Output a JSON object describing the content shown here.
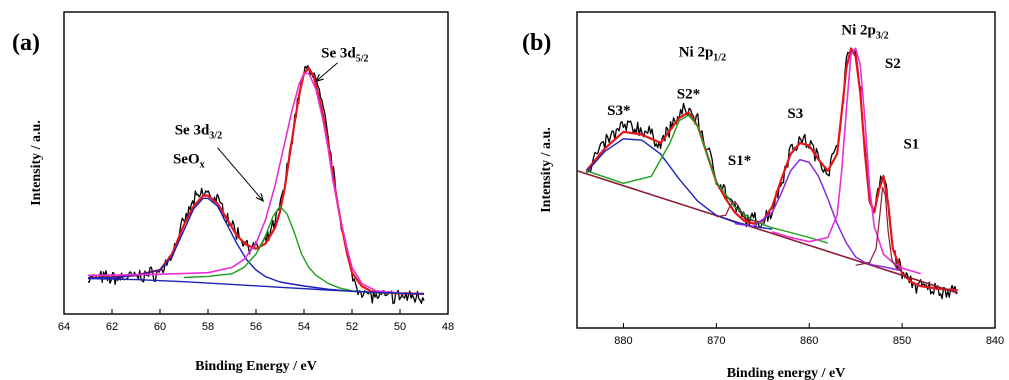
{
  "chart_data": [
    {
      "panel": "(a)",
      "type": "line",
      "xlabel": "Binding Energy / eV",
      "ylabel": "Intensity / a.u.",
      "xlim": [
        64,
        48
      ],
      "ylim": [
        0,
        100
      ],
      "x_reversed": true,
      "x_ticks": [
        64,
        62,
        60,
        58,
        56,
        54,
        52,
        50,
        48
      ],
      "grid": false,
      "annotations": [
        {
          "id": "seox",
          "text": "SeO",
          "sub": "x",
          "x": 58.8,
          "y": 52
        },
        {
          "id": "se3d32",
          "text": "Se 3d",
          "sub": "3/2",
          "x": 58.4,
          "y": 63
        },
        {
          "id": "se3d52",
          "text": "Se 3d",
          "sub": "5/2",
          "x": 52.3,
          "y": 92
        }
      ],
      "arrows": [
        {
          "id": "arrow-se3d32",
          "from": [
            57.6,
            58
          ],
          "to": [
            55.7,
            38
          ]
        },
        {
          "id": "arrow-se3d52",
          "from": [
            52.6,
            90
          ],
          "to": [
            53.5,
            83
          ]
        }
      ],
      "series": [
        {
          "id": "raw",
          "color": "#000000",
          "width": 1.3,
          "noise": 2.2,
          "x": [
            63,
            62,
            61,
            60,
            59.5,
            59,
            58.6,
            58.2,
            58,
            57.6,
            57.2,
            56.8,
            56.4,
            56,
            55.6,
            55.2,
            55,
            54.8,
            54.6,
            54.4,
            54.2,
            54,
            53.8,
            53.6,
            53.4,
            53.2,
            53,
            52.8,
            52.6,
            52.4,
            52.2,
            52,
            51.8,
            51.4,
            51,
            50,
            49
          ],
          "y": [
            9,
            9,
            9.5,
            11,
            18,
            30,
            38,
            41,
            41,
            38,
            32,
            26,
            22,
            20,
            22,
            30,
            36,
            44,
            56,
            68,
            78,
            86,
            88,
            86,
            80,
            72,
            62,
            50,
            38,
            28,
            18,
            10,
            6,
            3,
            2,
            2,
            2
          ]
        },
        {
          "id": "envelope",
          "color": "#e8141c",
          "width": 2.2,
          "noise": 0,
          "x": [
            63,
            62,
            61,
            60,
            59.5,
            59,
            58.6,
            58.2,
            58,
            57.6,
            57.2,
            56.8,
            56.4,
            56,
            55.6,
            55.2,
            55,
            54.8,
            54.6,
            54.4,
            54.2,
            54,
            53.8,
            53.6,
            53.4,
            53.2,
            53,
            52.8,
            52.6,
            52.4,
            52.2,
            52,
            51.6,
            51.2,
            50.6,
            50,
            49
          ],
          "y": [
            9,
            9.3,
            10,
            12,
            18,
            29,
            36,
            40,
            40,
            37,
            31,
            25,
            21.5,
            20,
            22,
            28,
            34,
            43,
            55,
            67,
            78,
            86,
            88,
            85,
            78,
            70,
            60,
            48,
            37,
            27,
            18,
            11,
            6,
            4,
            3.5,
            3.2,
            3
          ]
        },
        {
          "id": "component-seox",
          "color": "#1c22b8",
          "width": 1.4,
          "noise": 0,
          "x": [
            63,
            62,
            61,
            60,
            59.5,
            59,
            58.6,
            58.2,
            58,
            57.6,
            57.2,
            56.8,
            56.4,
            56,
            55.6,
            55,
            54,
            53,
            52,
            51,
            50,
            49
          ],
          "y": [
            9,
            9.2,
            10,
            12,
            17,
            27,
            35,
            39,
            39,
            36,
            29,
            22,
            16,
            12,
            9.5,
            7.5,
            6,
            4.8,
            4,
            3.5,
            3.2,
            3
          ]
        },
        {
          "id": "component-se3d32",
          "color": "#18a21c",
          "width": 1.4,
          "noise": 0,
          "x": [
            59,
            58,
            57,
            56.5,
            56,
            55.6,
            55.3,
            55,
            54.7,
            54.4,
            54.1,
            53.8,
            53.5,
            53,
            52.5,
            52,
            51,
            50
          ],
          "y": [
            9.2,
            9.6,
            10.6,
            13,
            18,
            25,
            32,
            36,
            33,
            26,
            18,
            13,
            10,
            7,
            5.2,
            4.2,
            3.5,
            3.2
          ]
        },
        {
          "id": "component-se3d52",
          "color": "#e82fd8",
          "width": 1.6,
          "noise": 0,
          "x": [
            63,
            62,
            60,
            58,
            57,
            56.5,
            56,
            55.6,
            55.2,
            54.8,
            54.5,
            54.2,
            54,
            53.8,
            53.5,
            53.2,
            53,
            52.8,
            52.5,
            52.2,
            52,
            51.6,
            51,
            50
          ],
          "y": [
            10,
            10.1,
            10.4,
            11,
            13,
            16,
            22,
            31,
            44,
            60,
            72,
            82,
            86,
            86,
            80,
            68,
            58,
            46,
            32,
            20,
            13,
            7,
            4.2,
            3.3
          ]
        },
        {
          "id": "background",
          "color": "#1c22b8",
          "width": 1.4,
          "noise": 0,
          "x": [
            63,
            61,
            59,
            57,
            55,
            53,
            51,
            49
          ],
          "y": [
            8.8,
            8.4,
            7.6,
            6.6,
            5.5,
            4.5,
            3.6,
            3
          ]
        }
      ]
    },
    {
      "panel": "(b)",
      "type": "line",
      "xlabel": "Binding energy / eV",
      "ylabel": "Intensity / a.u.",
      "xlim": [
        885,
        840
      ],
      "ylim": [
        0,
        100
      ],
      "x_reversed": true,
      "x_ticks": [
        880,
        870,
        860,
        850,
        840
      ],
      "grid": false,
      "annotations": [
        {
          "id": "s3star",
          "text": "S3*",
          "sub": "",
          "x": 880.5,
          "y": 72
        },
        {
          "id": "s2star",
          "text": "S2*",
          "sub": "",
          "x": 873.0,
          "y": 78
        },
        {
          "id": "ni2p12",
          "text": "Ni 2p",
          "sub": "1/2",
          "x": 871.5,
          "y": 93
        },
        {
          "id": "s1star",
          "text": "S1*",
          "sub": "",
          "x": 867.5,
          "y": 54
        },
        {
          "id": "s3",
          "text": "S3",
          "sub": "",
          "x": 861.5,
          "y": 71
        },
        {
          "id": "ni2p32",
          "text": "Ni 2p",
          "sub": "3/2",
          "x": 854.0,
          "y": 101
        },
        {
          "id": "s2",
          "text": "S2",
          "sub": "",
          "x": 851.0,
          "y": 89
        },
        {
          "id": "s1",
          "text": "S1",
          "sub": "",
          "x": 849.0,
          "y": 60
        }
      ],
      "arrows": [],
      "series": [
        {
          "id": "raw",
          "color": "#000000",
          "width": 1.3,
          "noise": 2.4,
          "x": [
            884,
            882,
            880,
            878,
            876,
            874,
            873,
            872,
            871,
            870,
            869,
            868,
            867,
            866,
            865,
            864,
            863,
            862,
            861,
            860,
            859,
            858,
            857,
            856.5,
            856,
            855.5,
            855,
            854.5,
            854,
            853.5,
            853,
            852.5,
            852,
            851.5,
            851,
            850,
            849,
            848,
            846,
            845,
            844
          ],
          "y": [
            52,
            62,
            68,
            67,
            62,
            72,
            74,
            70,
            60,
            50,
            44,
            38,
            35,
            34,
            34,
            38,
            48,
            60,
            63,
            62,
            56,
            52,
            60,
            74,
            90,
            96,
            94,
            82,
            60,
            42,
            38,
            46,
            51,
            40,
            24,
            15,
            12,
            10,
            9,
            9,
            10
          ]
        },
        {
          "id": "envelope",
          "color": "#e8141c",
          "width": 2.2,
          "noise": 0,
          "x": [
            884,
            882,
            880,
            878,
            876,
            874,
            873,
            872,
            871,
            870,
            869,
            868,
            867,
            866,
            865,
            864,
            863,
            862,
            861,
            860,
            859,
            858,
            857,
            856.5,
            856,
            855.5,
            855,
            854.5,
            854,
            853.5,
            853,
            852.5,
            852,
            851.5,
            851,
            850,
            849,
            848,
            846,
            844
          ],
          "y": [
            52,
            60,
            66,
            65,
            62,
            71,
            73,
            68,
            58,
            48,
            42,
            37,
            34,
            33,
            34,
            39,
            49,
            58,
            62,
            61,
            56,
            52,
            58,
            73,
            89,
            96,
            93,
            80,
            58,
            41,
            37,
            45,
            50,
            40,
            24,
            15,
            12,
            10.5,
            9.5,
            9
          ]
        },
        {
          "id": "background",
          "color": "#8a1d33",
          "width": 1.6,
          "noise": 0,
          "x": [
            885,
            844
          ],
          "y": [
            52,
            8
          ]
        },
        {
          "id": "component-s3star",
          "color": "#1c22b8",
          "width": 1.4,
          "noise": 0,
          "x": [
            884,
            882,
            880,
            878,
            876,
            874,
            872,
            870,
            868,
            866,
            864
          ],
          "y": [
            51.5,
            59,
            63.5,
            63,
            58,
            49,
            41,
            36,
            33.5,
            32,
            31
          ]
        },
        {
          "id": "component-s2star",
          "color": "#18a21c",
          "width": 1.4,
          "noise": 0,
          "x": [
            884,
            880,
            877,
            875,
            874,
            873,
            872,
            871,
            870,
            868,
            866,
            864,
            862,
            860,
            858
          ],
          "y": [
            52,
            47.5,
            50,
            62,
            70,
            72,
            68,
            58,
            48,
            39,
            34,
            31.5,
            29.8,
            28,
            26
          ]
        },
        {
          "id": "component-s1star",
          "color": "#8a1d33",
          "width": 1.2,
          "noise": 0,
          "x": [
            870,
            869,
            868.5,
            868,
            867.5,
            867,
            866,
            865
          ],
          "y": [
            35.5,
            36,
            39.5,
            41,
            38.5,
            35,
            34,
            33.5
          ]
        },
        {
          "id": "component-s3",
          "color": "#8b2be2",
          "width": 1.5,
          "noise": 0,
          "x": [
            868,
            866,
            864,
            863,
            862,
            861,
            860,
            859,
            858,
            857,
            856,
            855,
            854,
            853,
            852,
            850
          ],
          "y": [
            33,
            32,
            37,
            44,
            52,
            56,
            55,
            50,
            42,
            33,
            26,
            21,
            19,
            18,
            17.5,
            16
          ]
        },
        {
          "id": "component-s2",
          "color": "#e82fd8",
          "width": 1.6,
          "noise": 0,
          "x": [
            864,
            862,
            860,
            858,
            857,
            856.5,
            856,
            855.5,
            855,
            854.5,
            854,
            853.5,
            853,
            852,
            851,
            850,
            848
          ],
          "y": [
            30,
            28,
            26.5,
            28,
            36,
            52,
            74,
            94,
            96,
            90,
            70,
            46,
            32,
            22,
            19,
            17,
            15
          ]
        },
        {
          "id": "component-s1",
          "color": "#8a1d33",
          "width": 1.2,
          "noise": 0,
          "x": [
            855,
            853.5,
            852.8,
            852.4,
            852.1,
            851.8,
            851.5,
            851.1,
            850.6,
            850
          ],
          "y": [
            18,
            19,
            24,
            36,
            46,
            43,
            30,
            20,
            17,
            16
          ]
        }
      ]
    }
  ]
}
